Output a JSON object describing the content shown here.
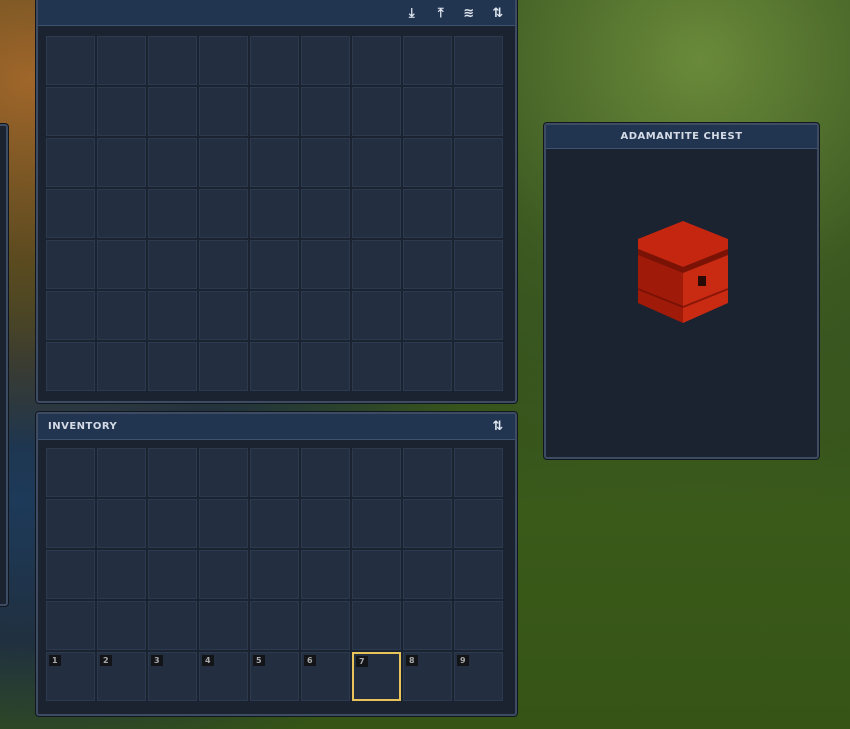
{
  "storage": {
    "icons": [
      "download-icon",
      "upload-icon",
      "layers-icon",
      "sort-icon"
    ],
    "rows": 7,
    "cols": 9
  },
  "inventory": {
    "title": "INVENTORY",
    "rows": 4,
    "cols": 9,
    "hotbar": [
      "1",
      "2",
      "3",
      "4",
      "5",
      "6",
      "7",
      "8",
      "9"
    ],
    "selected_hotbar": "7",
    "sort_icon": "sort-icon"
  },
  "preview": {
    "title": "ADAMANTITE CHEST"
  },
  "colors": {
    "selected": "#e8c25a",
    "panel": "#1b2230",
    "header": "#223550"
  }
}
